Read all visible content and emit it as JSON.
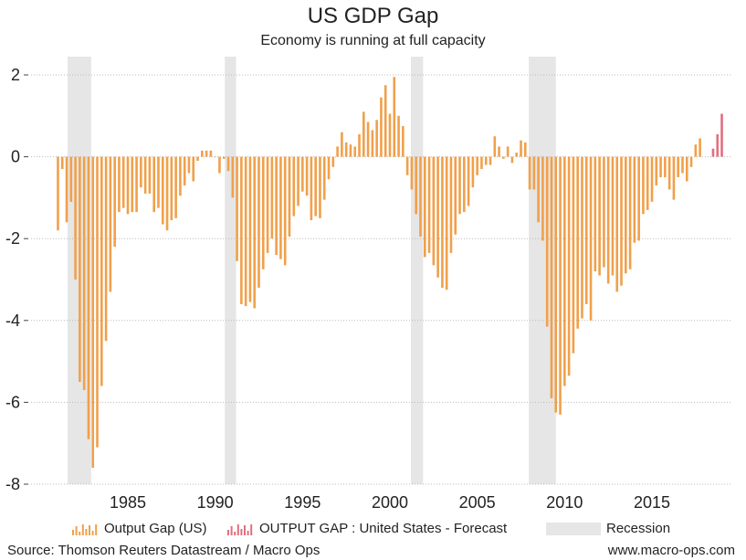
{
  "chart_data": {
    "type": "bar",
    "title": "US GDP Gap",
    "subtitle": "Economy is running at full capacity",
    "xlabel": "",
    "ylabel": "",
    "ylim": [
      -8,
      2.4
    ],
    "xlim": [
      1980.9,
      2018.6
    ],
    "yticks": [
      2,
      0,
      -2,
      -4,
      -6,
      -8
    ],
    "xticks": [
      1985,
      1990,
      1995,
      2000,
      2005,
      2010,
      2015
    ],
    "grid": "horizontal-dotted",
    "legend_position": "bottom",
    "x_start": 1981.0,
    "x_step": 0.25,
    "series": [
      {
        "name": "Output Gap (US)",
        "color": "#f0a04b",
        "values": [
          -1.8,
          -0.3,
          -1.6,
          -1.1,
          -3.0,
          -5.5,
          -5.7,
          -6.9,
          -7.6,
          -7.1,
          -5.6,
          -4.5,
          -3.3,
          -2.2,
          -1.35,
          -1.25,
          -1.4,
          -1.35,
          -1.35,
          -0.75,
          -0.9,
          -0.9,
          -1.35,
          -1.25,
          -1.65,
          -1.8,
          -1.55,
          -1.5,
          -0.95,
          -0.7,
          -0.4,
          -0.6,
          -0.1,
          0.15,
          0.15,
          0.15,
          0.0,
          -0.4,
          -0.05,
          -0.35,
          -1.0,
          -2.55,
          -3.6,
          -3.65,
          -3.55,
          -3.7,
          -3.2,
          -2.75,
          -2.35,
          -2.0,
          -2.4,
          -2.5,
          -2.65,
          -1.95,
          -1.45,
          -1.2,
          -0.85,
          -0.95,
          -1.55,
          -1.45,
          -1.5,
          -1.05,
          -0.55,
          -0.25,
          0.25,
          0.6,
          0.35,
          0.3,
          0.25,
          0.55,
          1.1,
          0.85,
          0.65,
          0.9,
          1.45,
          1.75,
          1.05,
          1.95,
          1.0,
          0.75,
          -0.45,
          -0.8,
          -1.4,
          -1.95,
          -2.45,
          -2.35,
          -2.65,
          -2.95,
          -3.2,
          -3.25,
          -2.35,
          -1.9,
          -1.4,
          -1.35,
          -1.2,
          -0.75,
          -0.45,
          -0.3,
          -0.2,
          -0.2,
          0.5,
          0.25,
          -0.05,
          0.25,
          -0.15,
          0.1,
          0.4,
          0.35,
          -0.8,
          -0.8,
          -1.6,
          -2.05,
          -4.15,
          -5.9,
          -6.25,
          -6.3,
          -5.6,
          -5.35,
          -4.8,
          -4.2,
          -3.95,
          -3.6,
          -4.0,
          -2.8,
          -2.9,
          -2.7,
          -3.1,
          -2.9,
          -3.3,
          -3.15,
          -2.85,
          -2.75,
          -2.1,
          -2.05,
          -1.4,
          -1.3,
          -1.1,
          -0.7,
          -0.5,
          -0.5,
          -0.8,
          -1.05,
          -0.5,
          -0.4,
          -0.6,
          -0.25,
          0.3,
          0.45,
          null,
          null
        ]
      },
      {
        "name": "OUTPUT GAP : United States - Forecast",
        "color": "#e0707e",
        "start_index": 150,
        "values": [
          0.2,
          0.55,
          1.05
        ]
      }
    ],
    "recessions": [
      {
        "start": 1981.55,
        "end": 1982.9
      },
      {
        "start": 1990.55,
        "end": 1991.2
      },
      {
        "start": 2001.2,
        "end": 2001.9
      },
      {
        "start": 2007.95,
        "end": 2009.5
      }
    ],
    "legend": [
      {
        "label": "Output Gap (US)",
        "color": "#f0a04b",
        "kind": "bars"
      },
      {
        "label": "OUTPUT GAP : United States - Forecast",
        "color": "#e0707e",
        "kind": "bars"
      },
      {
        "label": "Recession",
        "color": "#e6e6e6",
        "kind": "band"
      }
    ]
  },
  "footer": {
    "source": "Source: Thomson Reuters Datastream / Macro Ops",
    "website": "www.macro-ops.com"
  }
}
